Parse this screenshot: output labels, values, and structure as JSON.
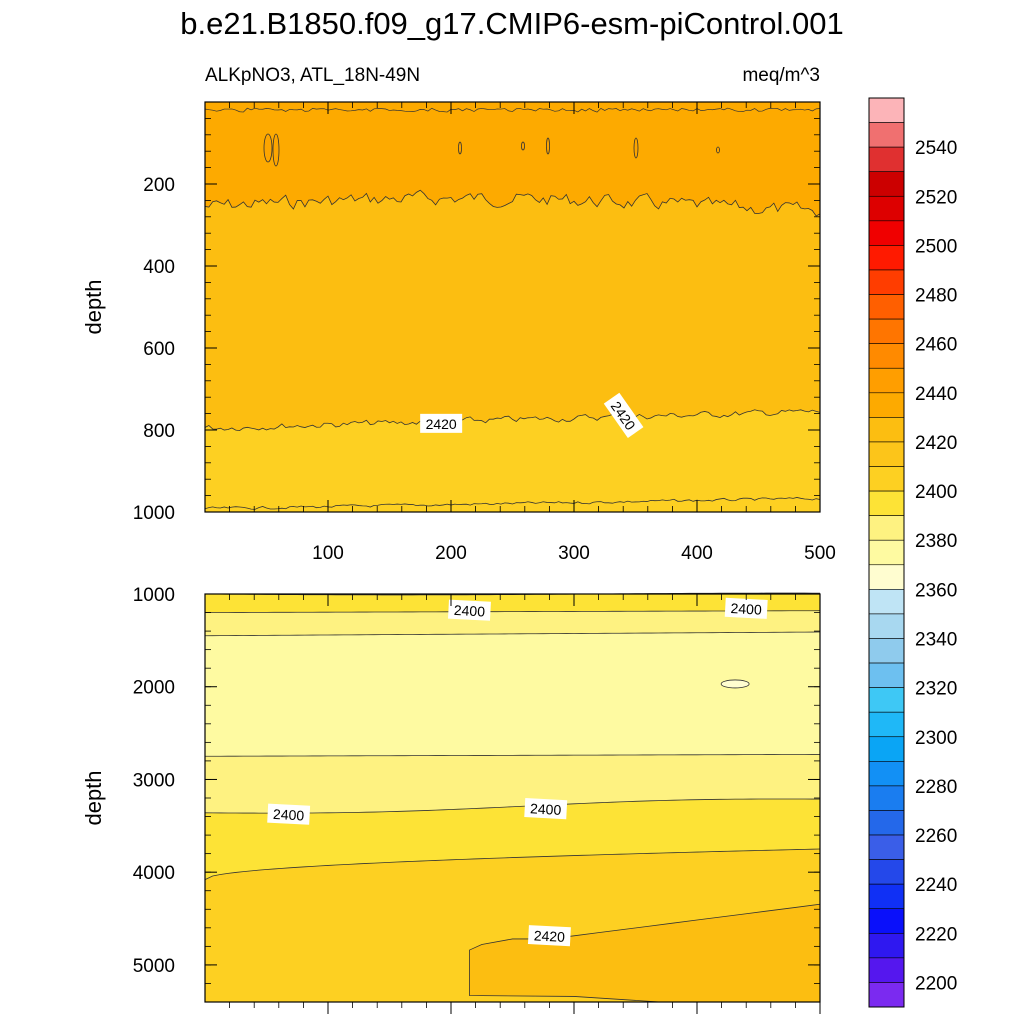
{
  "title": "b.e21.B1850.f09_g17.CMIP6-esm-piControl.001",
  "chart_data": [
    {
      "type": "heatmap",
      "panel": "upper",
      "subtitle_left": "ALKpNO3, ATL_18N-49N",
      "subtitle_right": "meq/m^3",
      "ylabel": "depth",
      "xlim": [
        0,
        500
      ],
      "ylim": [
        1000,
        0
      ],
      "xticks": [
        100,
        200,
        300,
        400,
        500
      ],
      "yticks": [
        200,
        400,
        600,
        800,
        1000
      ],
      "bands": [
        {
          "value": 2425,
          "from_depth": 0,
          "to_depth": 255,
          "color": "#fdaa00"
        },
        {
          "value": 2415,
          "from_depth": 255,
          "to_depth": 780,
          "color": "#fcbe11"
        },
        {
          "value": 2405,
          "from_depth": 780,
          "to_depth": 1000,
          "color": "#fdd022"
        }
      ],
      "contour_lines": [
        {
          "depth": 255,
          "label": null
        },
        {
          "depth": 780,
          "label": "2420"
        },
        {
          "depth": 980,
          "label": null
        }
      ],
      "contour_labels": [
        {
          "text": "2420",
          "x": 192,
          "depth": 785
        },
        {
          "text": "2420",
          "x": 340,
          "depth": 765
        }
      ]
    },
    {
      "type": "heatmap",
      "panel": "lower",
      "ylabel": "depth",
      "xlim": [
        0,
        500
      ],
      "ylim": [
        5400,
        1000
      ],
      "yticks": [
        1000,
        2000,
        3000,
        4000,
        5000
      ],
      "bands": [
        {
          "value": 2395,
          "from_depth": 1000,
          "to_depth": 1200,
          "color": "#fde336"
        },
        {
          "value": 2385,
          "from_depth": 1200,
          "to_depth": 1450,
          "color": "#fef281"
        },
        {
          "value": 2375,
          "from_depth": 1450,
          "to_depth": 2750,
          "color": "#fefaa1"
        },
        {
          "value": 2385,
          "from_depth": 2750,
          "to_depth": 3300,
          "color": "#fef281"
        },
        {
          "value": 2395,
          "from_depth": 3300,
          "to_depth": 3900,
          "color": "#fde336"
        },
        {
          "value": 2405,
          "from_depth": 3900,
          "to_depth": 5400,
          "color": "#fdd022"
        },
        {
          "value": 2415,
          "from_depth": 4550,
          "to_depth": 5400,
          "color": "#fcbe11"
        }
      ],
      "contour_labels": [
        {
          "text": "2400",
          "x": 215,
          "depth": 1180
        },
        {
          "text": "2400",
          "x": 440,
          "depth": 1160
        },
        {
          "text": "2400",
          "x": 68,
          "depth": 3380
        },
        {
          "text": "2400",
          "x": 277,
          "depth": 3320
        },
        {
          "text": "2420",
          "x": 280,
          "depth": 4690
        }
      ]
    }
  ],
  "colorbar": {
    "labels": [
      "2540",
      "2520",
      "2500",
      "2480",
      "2460",
      "2440",
      "2420",
      "2400",
      "2380",
      "2360",
      "2340",
      "2320",
      "2300",
      "2280",
      "2260",
      "2240",
      "2220",
      "2200"
    ],
    "colors": [
      "#fcb4b8",
      "#f07070",
      "#e03030",
      "#cc0000",
      "#dd0000",
      "#f00000",
      "#ff1a00",
      "#ff3d00",
      "#ff5f00",
      "#ff7500",
      "#ff8a00",
      "#ff9e00",
      "#fdaa00",
      "#fcbe11",
      "#fcc51a",
      "#fdd022",
      "#fde336",
      "#fef281",
      "#fefaa1",
      "#fffdd0",
      "#bfe4f5",
      "#a8d8f0",
      "#8fcbed",
      "#6dc0f0",
      "#3ec8f5",
      "#1fb8f7",
      "#0aa5f5",
      "#1290f5",
      "#1a7df0",
      "#2468ea",
      "#3a5ee8",
      "#2448ea",
      "#1030f5",
      "#0a10fa",
      "#2f18f0",
      "#5517ee",
      "#7b2af0"
    ]
  }
}
